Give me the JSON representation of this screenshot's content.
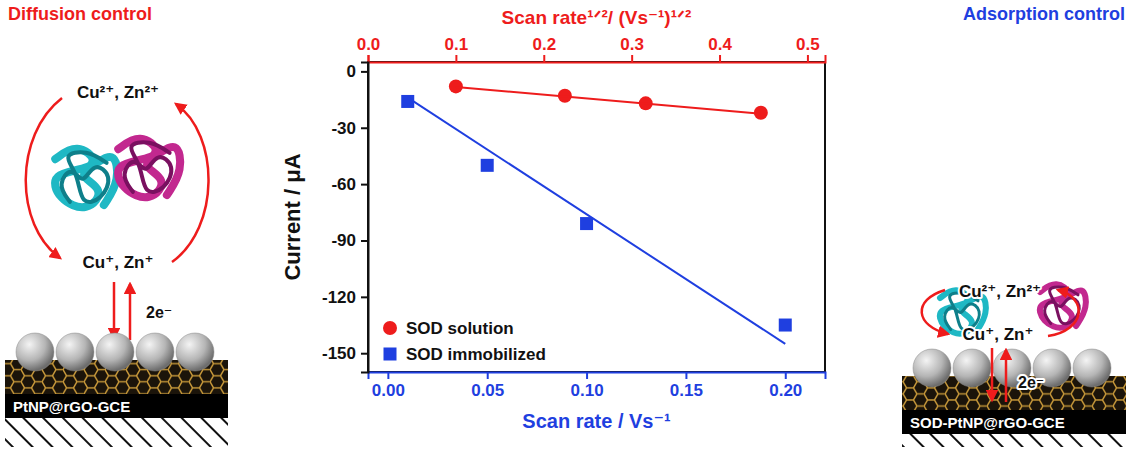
{
  "chart_data": {
    "type": "scatter",
    "x_label": "Scan rate / Vs⁻¹",
    "x2_label": "Scan rate¹ᐟ²/ (Vs⁻¹)¹ᐟ²",
    "y_label": "Current / μA",
    "xlim": [
      -0.01,
      0.22
    ],
    "xticks": [
      {
        "value": 0,
        "label": "0.00"
      },
      0.05,
      {
        "value": 0.1,
        "label": "0.10"
      },
      0.15,
      {
        "value": 0.2,
        "label": "0.20"
      }
    ],
    "x2lim": [
      0,
      0.52
    ],
    "x2ticks": [
      {
        "value": 0,
        "label": "0.0"
      },
      0.1,
      0.2,
      0.3,
      0.4,
      0.5
    ],
    "ylim": [
      -160,
      5
    ],
    "yticks": [
      -150,
      -120,
      -90,
      -60,
      -30,
      0
    ],
    "grid": false,
    "legend": "lower left",
    "series": [
      {
        "name": "SOD solution",
        "type": "scatter",
        "axis": "x2",
        "color": "#ee1c1c",
        "marker": "circle",
        "x": [
          0.1,
          0.224,
          0.316,
          0.447
        ],
        "values": [
          -8,
          -13,
          -17,
          -22
        ]
      },
      {
        "name": "SOD immobilized",
        "type": "scatter",
        "color": "#1f3fe0",
        "marker": "square",
        "x": [
          0.01,
          0.05,
          0.1,
          0.2
        ],
        "values": [
          -16,
          -50,
          -81,
          -135
        ]
      },
      {
        "type": "line",
        "axis": "x2",
        "color": "#ee1c1c",
        "line_style": "solid",
        "x": [
          0.1,
          0.447
        ],
        "values": [
          -8.3,
          -22.5
        ]
      },
      {
        "type": "line",
        "color": "#1f3fe0",
        "line_style": "solid",
        "x": [
          0.01,
          0.2
        ],
        "values": [
          -14,
          -145
        ]
      }
    ]
  },
  "diagrams": [
    {
      "title": "Diffusion control",
      "oxidized": "Cu²⁺, Zn²⁺",
      "reduced": "Cu⁺, Zn⁺",
      "electrons": "2e⁻",
      "electrode": "PtNP@rGO-GCE"
    },
    {
      "title": "Adsorption control",
      "oxidized": "Cu²⁺, Zn²⁺",
      "reduced": "Cu⁺, Zn⁺",
      "electrons": "2e⁻",
      "electrode": "SOD-PtNP@rGO-GCE"
    }
  ]
}
